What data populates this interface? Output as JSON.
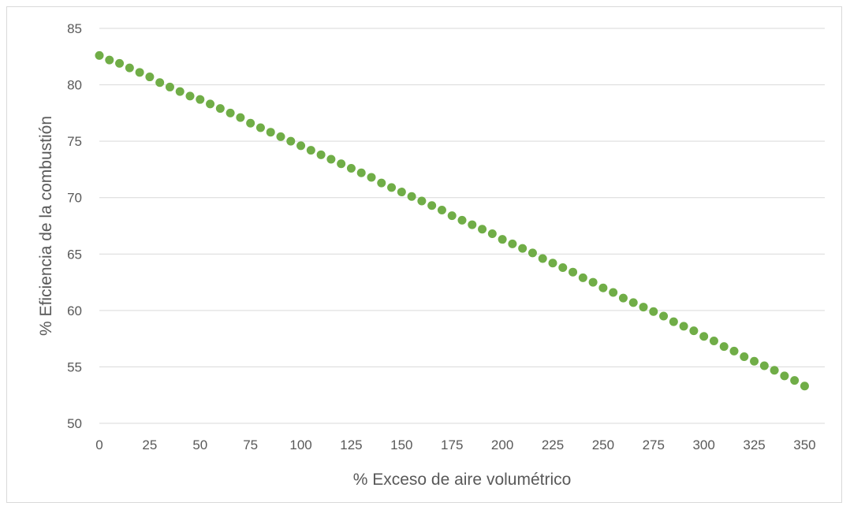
{
  "chart_data": {
    "type": "scatter",
    "title": "",
    "xlabel": "% Exceso de aire volumétrico",
    "ylabel": "% Eficiencia de la combustión",
    "xlim": [
      0,
      360
    ],
    "ylim": [
      50,
      85
    ],
    "x_ticks": [
      0,
      25,
      50,
      75,
      100,
      125,
      150,
      175,
      200,
      225,
      250,
      275,
      300,
      325,
      350
    ],
    "y_ticks": [
      50,
      55,
      60,
      65,
      70,
      75,
      80,
      85
    ],
    "grid": "horizontal",
    "legend": "none",
    "marker_color": "#70ad47",
    "series": [
      {
        "x": [
          0,
          5,
          10,
          15,
          20,
          25,
          30,
          35,
          40,
          45,
          50,
          55,
          60,
          65,
          70,
          75,
          80,
          85,
          90,
          95,
          100,
          105,
          110,
          115,
          120,
          125,
          130,
          135,
          140,
          145,
          150,
          155,
          160,
          165,
          170,
          175,
          180,
          185,
          190,
          195,
          200,
          205,
          210,
          215,
          220,
          225,
          230,
          235,
          240,
          245,
          250,
          255,
          260,
          265,
          270,
          275,
          280,
          285,
          290,
          295,
          300,
          305,
          310,
          315,
          320,
          325,
          330,
          335,
          340,
          345,
          350
        ],
        "y": [
          82.6,
          82.2,
          81.9,
          81.5,
          81.1,
          80.7,
          80.2,
          79.8,
          79.4,
          79.0,
          78.7,
          78.3,
          77.9,
          77.5,
          77.1,
          76.6,
          76.2,
          75.8,
          75.4,
          75.0,
          74.6,
          74.2,
          73.8,
          73.4,
          73.0,
          72.6,
          72.2,
          71.8,
          71.3,
          70.9,
          70.5,
          70.1,
          69.7,
          69.3,
          68.9,
          68.4,
          68.0,
          67.6,
          67.2,
          66.8,
          66.3,
          65.9,
          65.5,
          65.1,
          64.6,
          64.2,
          63.8,
          63.4,
          62.9,
          62.5,
          62.0,
          61.6,
          61.1,
          60.7,
          60.3,
          59.9,
          59.5,
          59.0,
          58.6,
          58.2,
          57.7,
          57.3,
          56.8,
          56.4,
          55.9,
          55.5,
          55.1,
          54.7,
          54.2,
          53.8,
          53.3
        ]
      }
    ]
  }
}
